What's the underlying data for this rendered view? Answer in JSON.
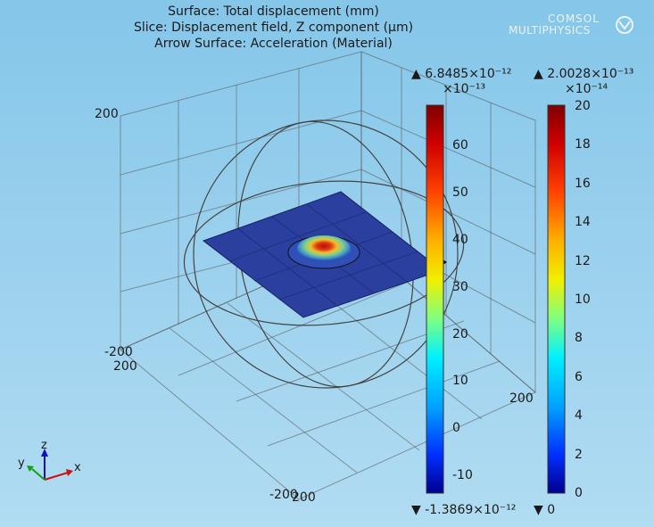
{
  "titles": [
    "Surface: Total displacement (mm)",
    "Slice: Displacement field, Z component (µm)",
    "Arrow Surface: Acceleration (Material)"
  ],
  "logo": {
    "line1": "COMSOL",
    "line2": "MULTIPHYSICS"
  },
  "axis_ticks": {
    "z_top": "200",
    "y_left_a": "-200",
    "y_left_b": "200",
    "x_bottom_a": "-200",
    "x_bottom_b": "200",
    "right": "200"
  },
  "colorbar1": {
    "max_label": "▲ 6.8485×10⁻¹²",
    "scale_label": "×10⁻¹³",
    "min_label": "▼ -1.3869×10⁻¹²",
    "ticks": [
      "60",
      "50",
      "40",
      "30",
      "20",
      "10",
      "0",
      "-10"
    ]
  },
  "colorbar2": {
    "max_label": "▲ 2.0028×10⁻¹³",
    "scale_label": "×10⁻¹⁴",
    "min_label": "▼ 0",
    "ticks": [
      "20",
      "18",
      "16",
      "14",
      "12",
      "10",
      "8",
      "6",
      "4",
      "2",
      "0"
    ]
  },
  "axes_triad": {
    "x": "x",
    "y": "y",
    "z": "z"
  },
  "colors": {
    "plate": "#2a3f9e",
    "jet_top": "#7f0000",
    "jet_bottom": "#00008f"
  }
}
